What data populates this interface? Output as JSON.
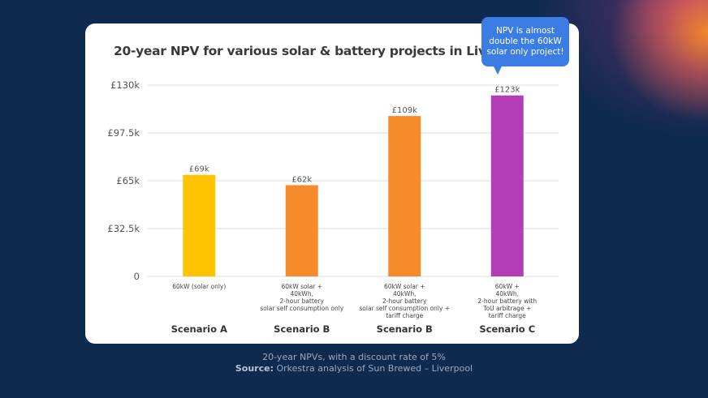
{
  "colors": {
    "background": "#0f2a4f",
    "card": "#ffffff",
    "callout": "#3b7de4",
    "scenario_a": "#ffc300",
    "scenario_b1": "#f68b2b",
    "scenario_b2": "#f68b2b",
    "scenario_c": "#b23db7"
  },
  "callout": {
    "text": "NPV is almost double the 60kW solar only project!"
  },
  "footer": {
    "line1": "20-year NPVs, with a discount rate of 5%",
    "source_label": "Source:",
    "source_text": " Orkestra analysis of Sun Brewed – Liverpool"
  },
  "chart_data": {
    "type": "bar",
    "title": "20-year NPV for various solar & battery projects in Liverpool",
    "xlabel": "",
    "ylabel": "",
    "ylim": [
      0,
      130
    ],
    "yticks": [
      0,
      32.5,
      65,
      97.5,
      130
    ],
    "ytick_labels": [
      "0",
      "£32.5k",
      "£65k",
      "£97.5k",
      "£130k"
    ],
    "grid": true,
    "legend": "none",
    "categories": [
      "Scenario A",
      "Scenario B",
      "Scenario B",
      "Scenario C"
    ],
    "category_descriptions": [
      [
        "60kW (solar only)"
      ],
      [
        "60kW solar +",
        "40kWh,",
        "2-hour battery",
        "solar self consumption only"
      ],
      [
        "60kW solar +",
        "40kWh,",
        "2-hour battery",
        "solar self consumption only +",
        "tariff charge"
      ],
      [
        "60kW +",
        "40kWh,",
        "2-hour battery with",
        "ToU arbitrage +",
        "tariff charge"
      ]
    ],
    "values": [
      69,
      62,
      109,
      123
    ],
    "value_labels": [
      "£69k",
      "£62k",
      "£109k",
      "£123k"
    ],
    "unit": "£ thousands"
  }
}
